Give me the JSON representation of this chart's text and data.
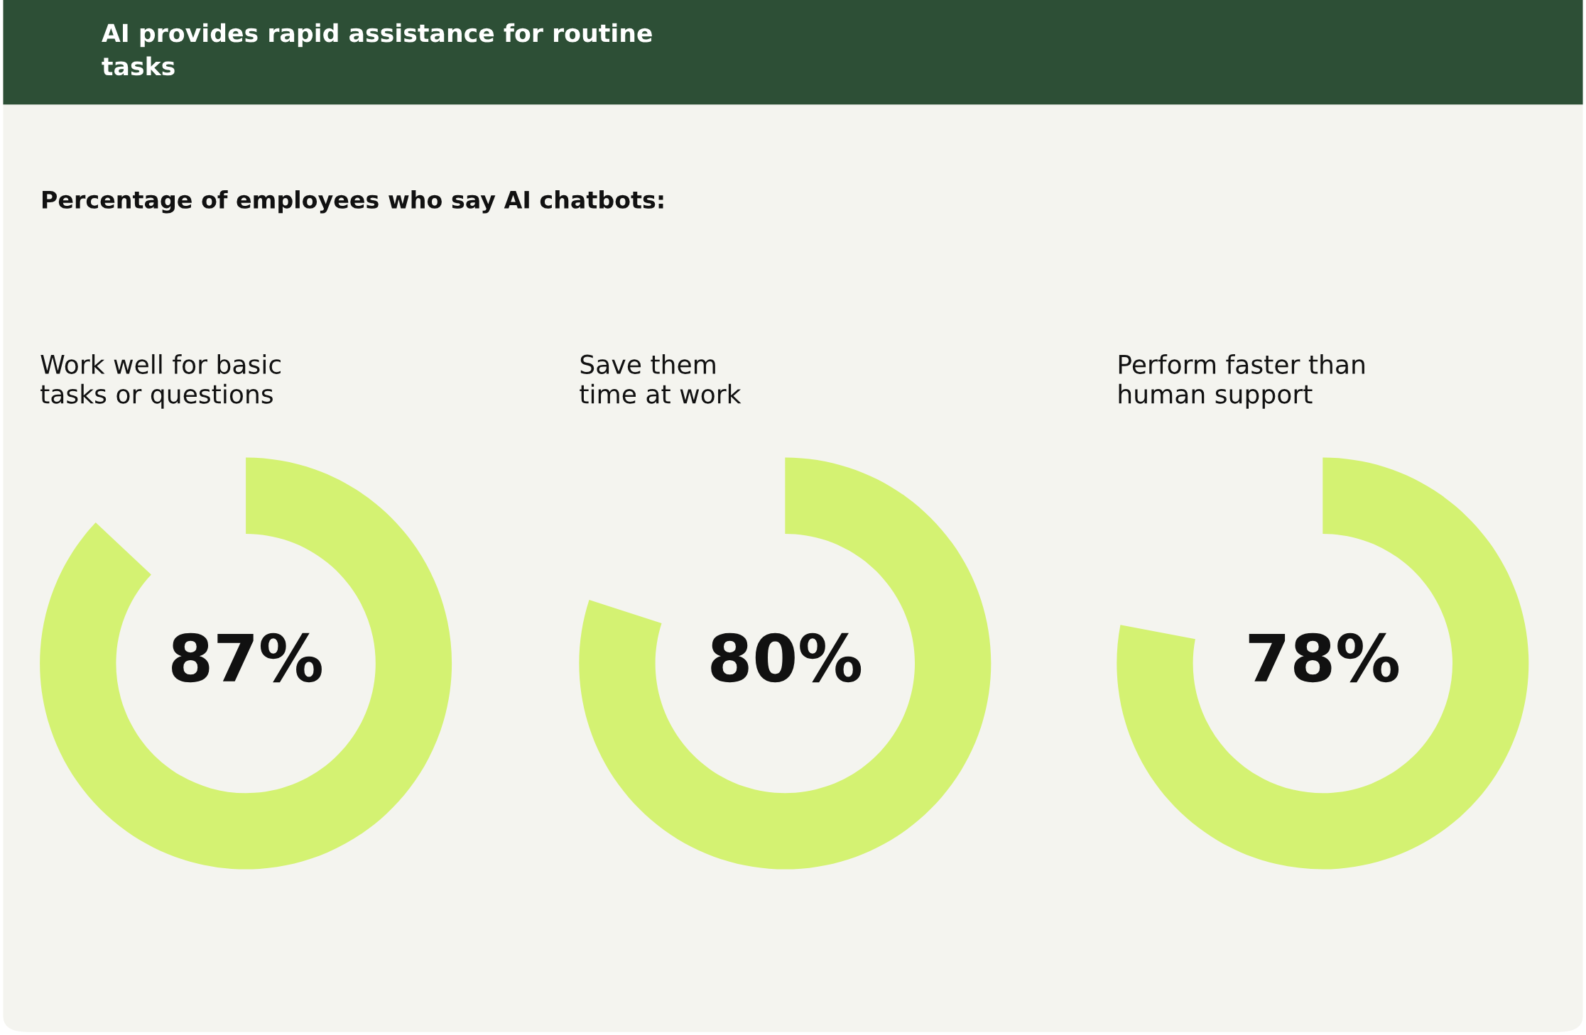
{
  "chart_data": [
    {
      "type": "other",
      "title": "AI provides rapid assistance for routine\ntasks",
      "subtitle": "Percentage of employees who say AI chatbots:"
    },
    {
      "type": "pie",
      "title": "Work well for basic\ntasks or questions",
      "categories": [
        null
      ],
      "values": [
        87
      ],
      "colors": [
        "#d4f272"
      ],
      "value_labels": [
        "87%"
      ]
    },
    {
      "type": "pie",
      "title": "Save them\ntime at work",
      "categories": [
        null
      ],
      "values": [
        80
      ],
      "colors": [
        "#d4f272"
      ],
      "value_labels": [
        "80%"
      ]
    },
    {
      "type": "pie",
      "title": "Perform faster than\nhuman support",
      "categories": [
        null
      ],
      "values": [
        78
      ],
      "colors": [
        "#d4f272"
      ],
      "value_labels": [
        "78%"
      ]
    }
  ]
}
